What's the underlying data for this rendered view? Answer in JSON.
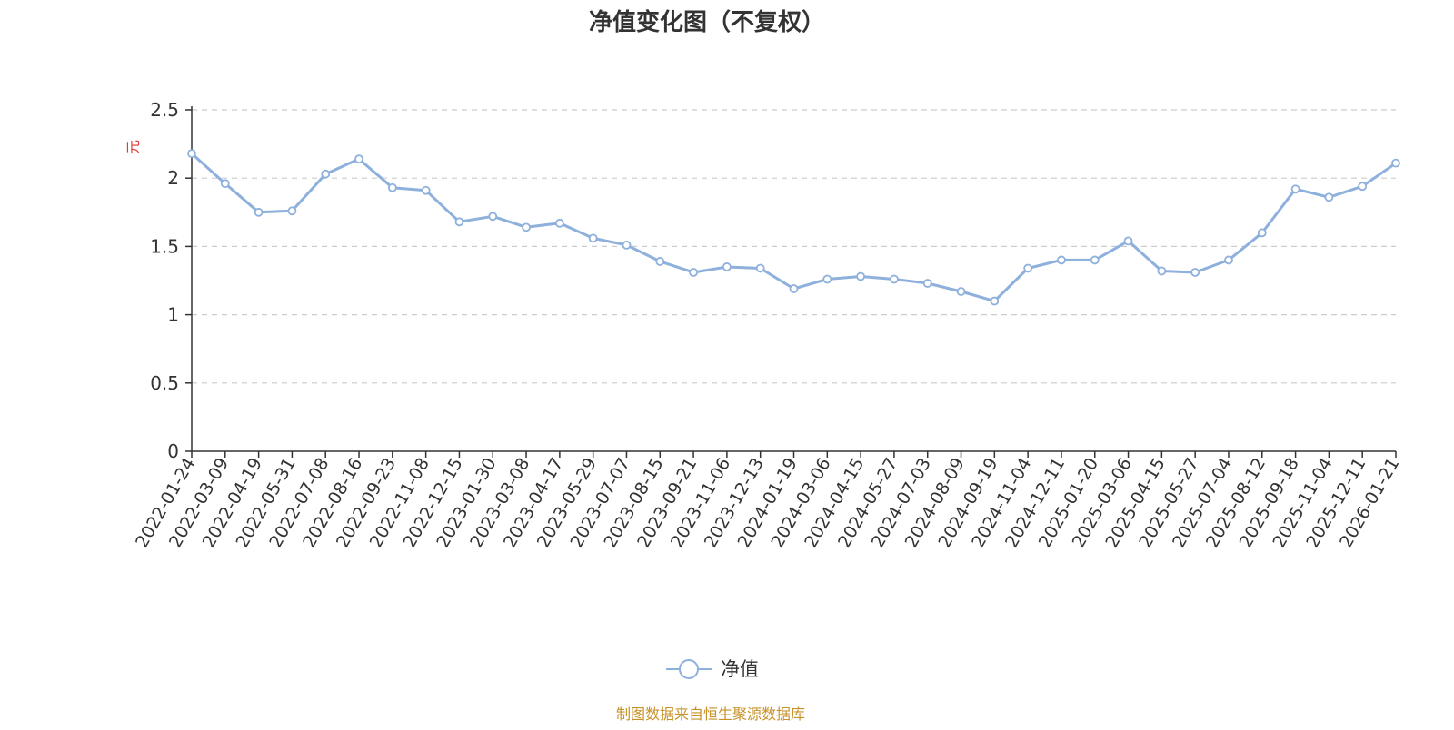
{
  "chart_data": {
    "type": "line",
    "title": "净值变化图（不复权）",
    "ylabel": "元",
    "ylim": [
      0,
      2.5
    ],
    "yticks": [
      "0",
      "0.5",
      "1",
      "1.5",
      "2",
      "2.5"
    ],
    "grid": true,
    "legend_position": "bottom-center",
    "line_color": "#8eb0dc",
    "categories": [
      "2022-01-24",
      "2022-03-09",
      "2022-04-19",
      "2022-05-31",
      "2022-07-08",
      "2022-08-16",
      "2022-09-23",
      "2022-11-08",
      "2022-12-15",
      "2023-01-30",
      "2023-03-08",
      "2023-04-17",
      "2023-05-29",
      "2023-07-07",
      "2023-08-15",
      "2023-09-21",
      "2023-11-06",
      "2023-12-13",
      "2024-01-19",
      "2024-03-06",
      "2024-04-15",
      "2024-05-27",
      "2024-07-03",
      "2024-08-09",
      "2024-09-19",
      "2024-11-04",
      "2024-12-11",
      "2025-01-20",
      "2025-03-06",
      "2025-04-15",
      "2025-05-27",
      "2025-07-04",
      "2025-08-12",
      "2025-09-18",
      "2025-11-04",
      "2025-12-11",
      "2026-01-21"
    ],
    "series": [
      {
        "name": "净值",
        "values": [
          2.18,
          1.96,
          1.75,
          1.76,
          2.03,
          2.14,
          1.93,
          1.91,
          1.68,
          1.72,
          1.64,
          1.67,
          1.56,
          1.51,
          1.39,
          1.31,
          1.35,
          1.34,
          1.19,
          1.26,
          1.28,
          1.26,
          1.23,
          1.17,
          1.1,
          1.34,
          1.4,
          1.4,
          1.54,
          1.32,
          1.31,
          1.4,
          1.6,
          1.92,
          1.86,
          1.94,
          2.11
        ]
      }
    ]
  },
  "legend": {
    "label": "净值"
  },
  "source": "制图数据来自恒生聚源数据库"
}
